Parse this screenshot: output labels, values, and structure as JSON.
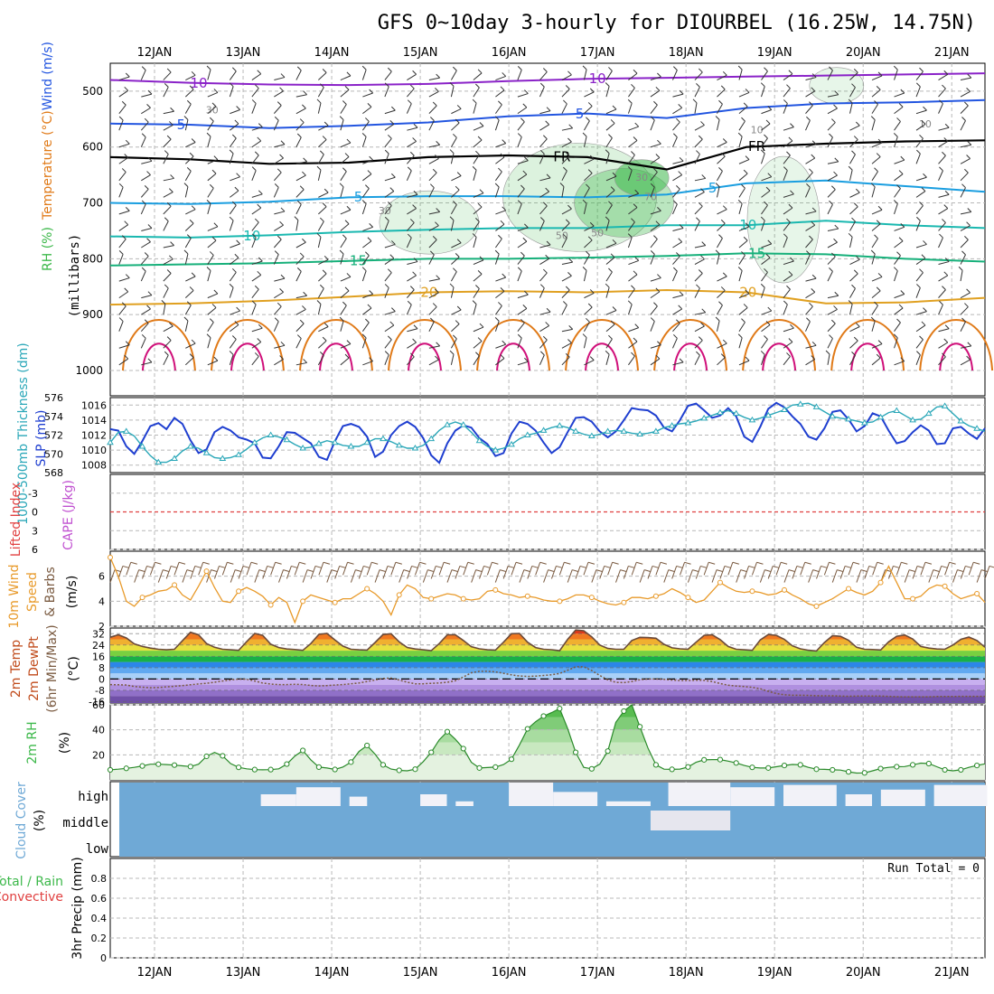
{
  "title": "GFS 0~10day 3-hourly for DIOURBEL (16.25W, 14.75N)",
  "colors": {
    "grid": "#b8b8b8",
    "text": "#000000",
    "temp_purple": "#8a22c8",
    "temp_blue": "#2255e0",
    "temp_cyan": "#1a9ee0",
    "temp_teal": "#1ab8b0",
    "temp_green": "#16b07a",
    "temp_gold": "#e0a020",
    "temp_orange": "#e07a18",
    "temp_magenta": "#d0107a",
    "rh_green": "#3cb84a",
    "thickness": "#2aa7b8",
    "slp": "#1f3fd0",
    "lifted": "#e04040",
    "cape": "#c050d0",
    "wind_speed": "#e89a2a",
    "cloud": "#6fa9d6",
    "precip_total": "#3cb84a",
    "precip_conv": "#e04040"
  },
  "chart_data": [
    {
      "id": "upper-air",
      "type": "contour",
      "ylabel_parts": {
        "rh": "RH (%)",
        "temp": "Temperature (°C)",
        "wind": "Wind (m/s)",
        "units": "(millibars)"
      },
      "y_ticks": [
        "500",
        "600",
        "700",
        "800",
        "900",
        "1000"
      ],
      "y_range": [
        450,
        1000
      ],
      "top_dates": [
        "12JAN",
        "13JAN",
        "14JAN",
        "15JAN",
        "16JAN",
        "17JAN",
        "18JAN",
        "19JAN",
        "20JAN",
        "21JAN"
      ],
      "isotherm_labels": [
        "10",
        "10",
        "5",
        "5",
        "FR",
        "FR",
        "5",
        "5",
        "10",
        "10",
        "15",
        "15",
        "20",
        "20"
      ],
      "rh_labels": [
        "30",
        "30",
        "50",
        "70",
        "30",
        "50",
        "10",
        "10"
      ],
      "isotherms": [
        {
          "temp": -10,
          "color": "temp_purple",
          "p": [
            480,
            485,
            488,
            489,
            487,
            482,
            478,
            476,
            474,
            472,
            470,
            468
          ]
        },
        {
          "temp": -5,
          "color": "temp_blue",
          "p": [
            558,
            560,
            566,
            562,
            556,
            545,
            540,
            548,
            530,
            522,
            520,
            516
          ]
        },
        {
          "temp": 0,
          "color": "text",
          "p": [
            618,
            622,
            630,
            628,
            618,
            615,
            618,
            640,
            600,
            594,
            590,
            588
          ]
        },
        {
          "temp": 5,
          "color": "temp_cyan",
          "p": [
            700,
            702,
            698,
            690,
            688,
            688,
            690,
            685,
            665,
            660,
            670,
            680
          ]
        },
        {
          "temp": 10,
          "color": "temp_teal",
          "p": [
            760,
            762,
            758,
            752,
            748,
            745,
            745,
            740,
            740,
            732,
            740,
            745
          ]
        },
        {
          "temp": 15,
          "color": "temp_green",
          "p": [
            812,
            810,
            808,
            804,
            800,
            800,
            798,
            795,
            790,
            792,
            800,
            805
          ]
        },
        {
          "temp": 20,
          "color": "temp_gold",
          "p": [
            882,
            880,
            875,
            868,
            860,
            858,
            860,
            856,
            860,
            880,
            878,
            870
          ]
        }
      ]
    },
    {
      "id": "thickness-slp",
      "type": "line",
      "ylabel": "1000-500mb Thickness (dm)",
      "ylabel2": "SLP (mb)",
      "left_ticks": [
        "568",
        "570",
        "572",
        "574",
        "576"
      ],
      "left_range": [
        568,
        576
      ],
      "right_ticks": [
        "1008",
        "1010",
        "1012",
        "1014",
        "1016"
      ],
      "right_range": [
        1007,
        1017
      ],
      "series": [
        {
          "key": "slp",
          "values": [
            1012.8,
            1012.6,
            1010.5,
            1009.5,
            1011.2,
            1013.2,
            1013.6,
            1012.8,
            1014.3,
            1013.5,
            1011.3,
            1009.6,
            1010.1,
            1012.4,
            1013.1,
            1012.6,
            1011.7,
            1011.4,
            1010.9,
            1009.0,
            1008.9,
            1010.5,
            1012.4,
            1012.3,
            1011.6,
            1010.9,
            1009.1,
            1008.7,
            1011.2,
            1013.2,
            1013.5,
            1013.1,
            1011.8,
            1009.1,
            1009.8,
            1012.0,
            1013.2,
            1013.8,
            1013.1,
            1011.6,
            1009.3,
            1008.3,
            1010.9,
            1012.6,
            1013.3,
            1013.0,
            1011.6,
            1010.8,
            1009.2,
            1009.6,
            1012.2,
            1013.8,
            1013.5,
            1012.6,
            1011.0,
            1009.6,
            1010.4,
            1012.4,
            1014.3,
            1014.4,
            1013.8,
            1012.5,
            1011.7,
            1012.5,
            1014.0,
            1015.6,
            1015.4,
            1015.3,
            1014.6,
            1013.0,
            1012.5,
            1014.0,
            1015.9,
            1016.2,
            1015.3,
            1014.3,
            1014.6,
            1015.6,
            1014.5,
            1011.8,
            1011.1,
            1013.1,
            1015.5,
            1016.3,
            1015.7,
            1014.5,
            1013.5,
            1011.8,
            1011.4,
            1012.9,
            1015.1,
            1015.3,
            1014.1,
            1012.5,
            1013.2,
            1014.9,
            1014.5,
            1012.6,
            1010.9,
            1011.2,
            1012.4,
            1013.3,
            1012.6,
            1010.8,
            1010.9,
            1012.9,
            1013.1,
            1012.2,
            1011.5,
            1012.9
          ]
        },
        {
          "key": "thickness",
          "values": [
            571.2,
            572.3,
            572.4,
            571.9,
            570.8,
            569.8,
            569.1,
            569.1,
            569.5,
            570.3,
            570.8,
            570.6,
            570.1,
            569.6,
            569.5,
            569.6,
            569.9,
            570.5,
            571.2,
            571.7,
            572.0,
            571.8,
            571.5,
            571.0,
            570.6,
            570.7,
            571.1,
            571.4,
            571.2,
            570.9,
            570.8,
            570.8,
            571.2,
            571.6,
            571.6,
            571.3,
            570.9,
            570.6,
            570.6,
            570.9,
            571.6,
            572.5,
            573.1,
            573.4,
            573.1,
            572.3,
            571.4,
            570.8,
            570.4,
            570.6,
            571.0,
            571.6,
            572.0,
            572.2,
            572.5,
            572.8,
            573.0,
            572.8,
            572.4,
            572.1,
            571.9,
            572.1,
            572.4,
            572.5,
            572.4,
            572.2,
            572.1,
            572.2,
            572.4,
            572.8,
            573.0,
            573.2,
            573.3,
            573.5,
            573.8,
            574.1,
            574.4,
            574.6,
            574.3,
            573.9,
            573.6,
            573.8,
            574.1,
            574.4,
            574.7,
            575.2,
            575.3,
            575.4,
            575.0,
            574.5,
            574.0,
            573.8,
            573.7,
            573.5,
            573.3,
            573.4,
            573.9,
            574.4,
            574.6,
            574.1,
            573.6,
            573.7,
            574.3,
            575.0,
            575.1,
            574.3,
            573.5,
            573.0,
            572.7,
            572.4
          ]
        }
      ]
    },
    {
      "id": "stability",
      "type": "line",
      "ylabel": "Lifted Index",
      "ylabel2": "CAPE (J/kg)",
      "y_ticks": [
        "-3",
        "0",
        "3",
        "6"
      ],
      "y_range": [
        -6,
        6
      ],
      "zero_line": 0
    },
    {
      "id": "wind10m",
      "type": "line",
      "ylabel": "10m Wind",
      "ylabel2": "Speed",
      "ylabel3": "& Barbs",
      "units": "(m/s)",
      "y_ticks": [
        "2",
        "4",
        "6"
      ],
      "y_range": [
        2,
        8
      ],
      "series": [
        {
          "key": "wind_speed",
          "values": [
            7.5,
            6.0,
            4.0,
            3.6,
            4.3,
            4.5,
            4.8,
            4.9,
            5.3,
            4.5,
            4.1,
            5.2,
            6.4,
            5.1,
            4.0,
            3.9,
            4.8,
            5.1,
            4.8,
            4.4,
            3.7,
            4.3,
            3.9,
            2.3,
            4.0,
            4.5,
            4.3,
            4.1,
            3.9,
            4.2,
            4.2,
            4.6,
            5.0,
            4.6,
            4.0,
            2.9,
            4.5,
            5.3,
            5.0,
            4.3,
            4.2,
            4.4,
            4.6,
            4.5,
            4.2,
            4.1,
            4.2,
            4.8,
            4.9,
            4.6,
            4.5,
            4.3,
            4.4,
            4.3,
            4.1,
            4.0,
            4.0,
            4.2,
            4.5,
            4.5,
            4.3,
            4.0,
            3.8,
            3.7,
            3.9,
            4.3,
            4.3,
            4.2,
            4.4,
            4.6,
            5.0,
            4.7,
            4.3,
            3.9,
            4.1,
            4.8,
            5.5,
            5.1,
            4.8,
            4.7,
            4.8,
            4.7,
            4.5,
            4.6,
            4.9,
            4.5,
            4.2,
            3.8,
            3.6,
            3.9,
            4.2,
            4.6,
            5.0,
            4.7,
            4.5,
            4.8,
            5.5,
            6.8,
            5.5,
            4.2,
            4.2,
            4.4,
            5.0,
            5.3,
            5.2,
            4.6,
            4.2,
            4.4,
            4.6,
            3.9
          ]
        }
      ]
    },
    {
      "id": "temperature",
      "type": "area",
      "ylabel": "2m Temp",
      "ylabel2": "2m DewPt",
      "ylabel3": "(6hr Min/Max)",
      "units": "(°C)",
      "y_ticks": [
        "-16",
        "-8",
        "0",
        "8",
        "16",
        "24",
        "32"
      ],
      "y_range": [
        -17,
        36
      ],
      "series": [
        {
          "key": "temp",
          "values": [
            29.5,
            31.2,
            29.0,
            24.8,
            23.0,
            21.8,
            21.0,
            20.6,
            21.0,
            27.0,
            33.0,
            31.2,
            25.0,
            22.4,
            21.0,
            20.6,
            20.2,
            26.4,
            32.2,
            30.8,
            24.6,
            22.2,
            21.2,
            20.8,
            20.2,
            25.0,
            31.5,
            32.2,
            27.6,
            23.2,
            21.0,
            20.6,
            20.4,
            25.8,
            31.4,
            32.0,
            26.2,
            22.3,
            21.2,
            20.6,
            20.0,
            25.0,
            31.2,
            31.2,
            27.2,
            22.8,
            21.3,
            20.6,
            20.4,
            26.0,
            32.0,
            32.2,
            26.0,
            22.2,
            21.0,
            20.7,
            20.0,
            28.0,
            34.6,
            34.1,
            29.8,
            24.0,
            21.6,
            21.0,
            21.0,
            27.2,
            29.4,
            29.2,
            28.8,
            24.5,
            22.0,
            21.3,
            21.0,
            26.0,
            30.8,
            31.2,
            27.8,
            23.0,
            21.0,
            20.6,
            20.2,
            27.6,
            31.4,
            30.8,
            28.0,
            23.4,
            21.3,
            20.3,
            19.8,
            25.8,
            30.6,
            30.1,
            27.4,
            22.4,
            21.0,
            20.8,
            20.5,
            26.2,
            30.2,
            31.1,
            28.2,
            23.0,
            21.8,
            21.2,
            21.0,
            24.0,
            28.0,
            29.6,
            27.2,
            22.4
          ]
        },
        {
          "key": "dewpt",
          "values": [
            -4.0,
            -4.1,
            -4.3,
            -5.3,
            -5.8,
            -6.2,
            -6.0,
            -5.6,
            -5.2,
            -4.7,
            -4.1,
            -3.5,
            -3.0,
            -2.3,
            -1.4,
            -0.7,
            -0.1,
            -0.2,
            -1.4,
            -2.9,
            -3.6,
            -4.0,
            -4.0,
            -3.8,
            -3.9,
            -4.6,
            -4.9,
            -4.7,
            -4.3,
            -4.0,
            -3.4,
            -2.8,
            -1.8,
            -0.7,
            0.4,
            0.6,
            -0.7,
            -2.3,
            -3.4,
            -3.4,
            -3.1,
            -2.8,
            -2.3,
            -1.2,
            1.4,
            4.4,
            5.4,
            5.4,
            5.0,
            4.0,
            2.9,
            2.1,
            1.8,
            2.0,
            2.5,
            3.0,
            3.9,
            6.2,
            8.6,
            8.6,
            6.0,
            2.5,
            -0.6,
            -2.4,
            -2.6,
            -1.8,
            -0.5,
            0.0,
            0.0,
            -0.3,
            -0.8,
            -1.1,
            -1.1,
            -0.9,
            -1.0,
            -1.8,
            -3.2,
            -4.4,
            -5.0,
            -5.4,
            -5.9,
            -6.9,
            -8.7,
            -10.3,
            -11.2,
            -11.5,
            -11.5,
            -11.6,
            -11.8,
            -11.9,
            -11.9,
            -12.1,
            -12.2,
            -12.1,
            -12.0,
            -12.0,
            -12.1,
            -12.3,
            -12.5,
            -12.6,
            -12.6,
            -12.6,
            -12.6,
            -12.4,
            -12.4,
            -12.4,
            -12.3,
            -12.3,
            -12.3,
            -12.3
          ]
        }
      ]
    },
    {
      "id": "rh2m",
      "type": "area",
      "ylabel": "2m RH",
      "units": "(%)",
      "y_ticks": [
        "20",
        "40",
        "60"
      ],
      "y_range": [
        0,
        60
      ],
      "series": [
        {
          "key": "rh",
          "values": [
            8.0,
            8.5,
            9.2,
            10.0,
            11.1,
            12.5,
            12.5,
            12.2,
            11.8,
            11.2,
            10.6,
            12.5,
            18.8,
            22.0,
            19.2,
            13.0,
            10.0,
            8.8,
            8.2,
            8.0,
            8.2,
            8.8,
            12.6,
            19.0,
            23.5,
            16.0,
            10.2,
            9.5,
            8.3,
            10.3,
            14.2,
            22.7,
            27.5,
            20.5,
            12.0,
            8.6,
            7.6,
            7.2,
            8.5,
            14.5,
            22.0,
            32.0,
            38.5,
            32.5,
            25.0,
            14.0,
            9.5,
            9.8,
            10.2,
            12.2,
            16.5,
            28.0,
            40.8,
            46.5,
            51.0,
            53.8,
            57.0,
            41.0,
            22.0,
            10.0,
            8.8,
            12.5,
            23.0,
            46.0,
            55.0,
            60.0,
            42.5,
            25.5,
            12.0,
            8.5,
            8.4,
            8.6,
            10.3,
            14.0,
            16.0,
            16.2,
            16.2,
            15.0,
            13.5,
            11.5,
            10.0,
            9.5,
            9.5,
            10.5,
            11.5,
            12.3,
            12.0,
            10.0,
            8.5,
            8.4,
            8.0,
            7.8,
            6.4,
            5.4,
            5.6,
            7.2,
            9.0,
            10.0,
            10.5,
            10.6,
            12.0,
            13.4,
            13.0,
            10.5,
            8.0,
            7.2,
            8.0,
            10.0,
            11.5,
            12.8
          ]
        }
      ]
    },
    {
      "id": "clouds",
      "type": "heatmap",
      "ylabel": "Cloud Cover",
      "units": "(%)",
      "levels": [
        "high",
        "middle",
        "low"
      ]
    },
    {
      "id": "precip",
      "type": "bar",
      "ylabel": "Total / Rain",
      "ylabel2": "Convective",
      "ylabel3": "3hr Precip (mm)",
      "y_ticks": [
        "0",
        "0.2",
        "0.4",
        "0.6",
        "0.8"
      ],
      "y_range": [
        0,
        1
      ],
      "annotation": "Run Total = 0",
      "values": []
    }
  ],
  "x_axis": {
    "dates": [
      "12JAN",
      "13JAN",
      "14JAN",
      "15JAN",
      "16JAN",
      "17JAN",
      "18JAN",
      "19JAN",
      "20JAN",
      "21JAN"
    ],
    "time_range_days": [
      0.0,
      9.875
    ],
    "date_positions_days": [
      0.5,
      1.5,
      2.5,
      3.5,
      4.5,
      5.5,
      6.5,
      7.5,
      8.5,
      9.5
    ]
  }
}
